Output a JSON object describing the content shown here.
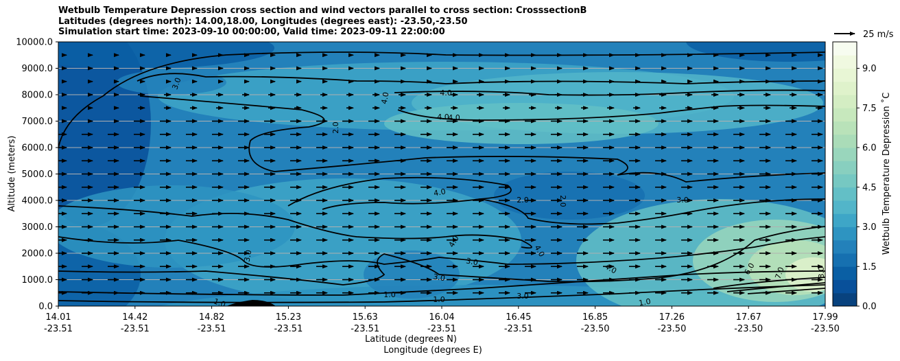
{
  "chart_data": {
    "type": "heatmap",
    "title_lines": [
      "Wetbulb Temperature Depression cross section and wind vectors parallel to cross section: CrosssectionB",
      "Latitudes (degrees north): 14.00,18.00, Longitudes (degrees east): -23.50,-23.50",
      "Simulation start time: 2023-09-10 00:00:00, Valid time: 2023-09-11 22:00:00"
    ],
    "ylabel": "Altitude (meters)",
    "xlabel_lat": "Latitude (degrees N)",
    "xlabel_lon": "Longitude (degrees E)",
    "ylim": [
      0,
      10000
    ],
    "y_ticks": [
      "0.0",
      "1000.0",
      "2000.0",
      "3000.0",
      "4000.0",
      "5000.0",
      "6000.0",
      "7000.0",
      "8000.0",
      "9000.0",
      "10000.0"
    ],
    "x_ticks": [
      {
        "lat": "14.01",
        "lon": "-23.51"
      },
      {
        "lat": "14.42",
        "lon": "-23.51"
      },
      {
        "lat": "14.82",
        "lon": "-23.51"
      },
      {
        "lat": "15.23",
        "lon": "-23.51"
      },
      {
        "lat": "15.63",
        "lon": "-23.51"
      },
      {
        "lat": "16.04",
        "lon": "-23.51"
      },
      {
        "lat": "16.45",
        "lon": "-23.51"
      },
      {
        "lat": "16.85",
        "lon": "-23.50"
      },
      {
        "lat": "17.26",
        "lon": "-23.50"
      },
      {
        "lat": "17.67",
        "lon": "-23.50"
      },
      {
        "lat": "17.99",
        "lon": "-23.50"
      }
    ],
    "grid": "horizontal",
    "colorbar": {
      "label": "Wetbulb Temperature Depression ˚C",
      "range": [
        0,
        10
      ],
      "ticks": [
        "0.0",
        "1.5",
        "3.0",
        "4.5",
        "6.0",
        "7.5",
        "9.0"
      ],
      "levels": [
        0,
        0.5,
        1,
        1.5,
        2,
        2.5,
        3,
        3.5,
        4,
        4.5,
        5,
        5.5,
        6,
        6.5,
        7,
        7.5,
        8,
        8.5,
        9,
        9.5,
        10
      ],
      "colors": [
        "#08427e",
        "#08509a",
        "#0a5fa4",
        "#1670b0",
        "#2381ba",
        "#2e94c1",
        "#3ea6c7",
        "#52b5c9",
        "#63bfc6",
        "#76c8c2",
        "#88cfbf",
        "#99d6bc",
        "#aadcb8",
        "#b9e2b9",
        "#c7e8bd",
        "#d4edc3",
        "#dff2cb",
        "#e8f6d5",
        "#f0f9e0",
        "#f7fcf0"
      ]
    },
    "contour_labels": [
      "1.0",
      "2.0",
      "3.0",
      "4.0",
      "6.0",
      "7.0",
      "8.0"
    ],
    "wind_key": "25 m/s"
  }
}
